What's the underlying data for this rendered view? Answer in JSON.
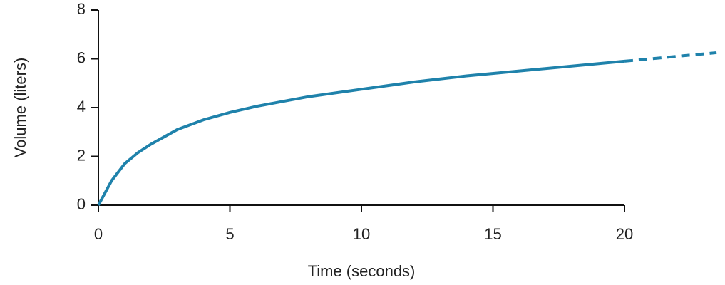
{
  "chart_data": {
    "type": "line",
    "x_label": "Time (seconds)",
    "y_label": "Volume (liters)",
    "xlim": [
      0,
      20
    ],
    "xticks": [
      0,
      5,
      10,
      15,
      20
    ],
    "ylim": [
      0,
      8
    ],
    "yticks": [
      0,
      2,
      4,
      6,
      8
    ],
    "series": [
      {
        "color": "#1f82ab",
        "linestyle": "solid",
        "x": [
          0,
          0.5,
          1,
          1.5,
          2,
          3,
          4,
          5,
          6,
          8,
          10,
          12,
          14,
          16,
          18,
          20
        ],
        "values": [
          0,
          1.0,
          1.7,
          2.15,
          2.5,
          3.1,
          3.5,
          3.8,
          4.05,
          4.45,
          4.75,
          5.05,
          5.3,
          5.5,
          5.7,
          5.9
        ]
      },
      {
        "color": "#1f82ab",
        "linestyle": "dashed",
        "x": [
          20,
          22,
          23.5
        ],
        "values": [
          5.9,
          6.1,
          6.25
        ]
      }
    ]
  }
}
